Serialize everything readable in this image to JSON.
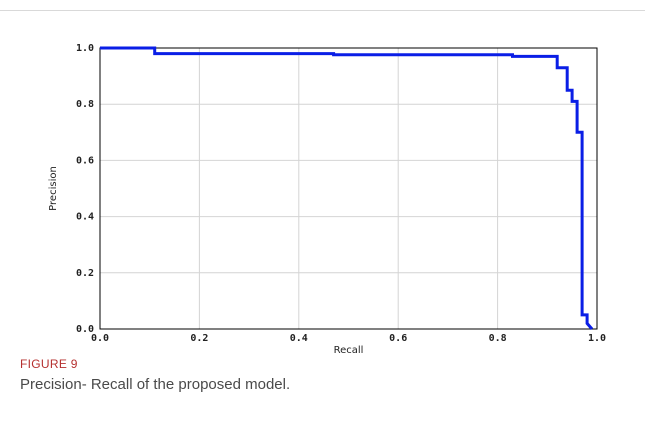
{
  "figure": {
    "label": "FIGURE 9",
    "caption": "Precision- Recall of the proposed model."
  },
  "chart_data": {
    "type": "line",
    "title": "",
    "xlabel": "Recall",
    "ylabel": "Precision",
    "xlim": [
      0.0,
      1.0
    ],
    "ylim": [
      0.0,
      1.0
    ],
    "xticks": [
      "0.0",
      "0.2",
      "0.4",
      "0.6",
      "0.8",
      "1.0"
    ],
    "yticks": [
      "0.0",
      "0.2",
      "0.4",
      "0.6",
      "0.8",
      "1.0"
    ],
    "grid": true,
    "color": "#0a1ee6",
    "series": [
      {
        "x": [
          0.0,
          0.11,
          0.11,
          0.47,
          0.47,
          0.83,
          0.83,
          0.92,
          0.92,
          0.94,
          0.94,
          0.95,
          0.95,
          0.96,
          0.96,
          0.97,
          0.97,
          0.98,
          0.98,
          0.99
        ],
        "y": [
          1.0,
          1.0,
          0.98,
          0.98,
          0.976,
          0.976,
          0.97,
          0.97,
          0.93,
          0.93,
          0.85,
          0.85,
          0.81,
          0.81,
          0.7,
          0.7,
          0.05,
          0.05,
          0.02,
          0.0
        ]
      }
    ]
  }
}
